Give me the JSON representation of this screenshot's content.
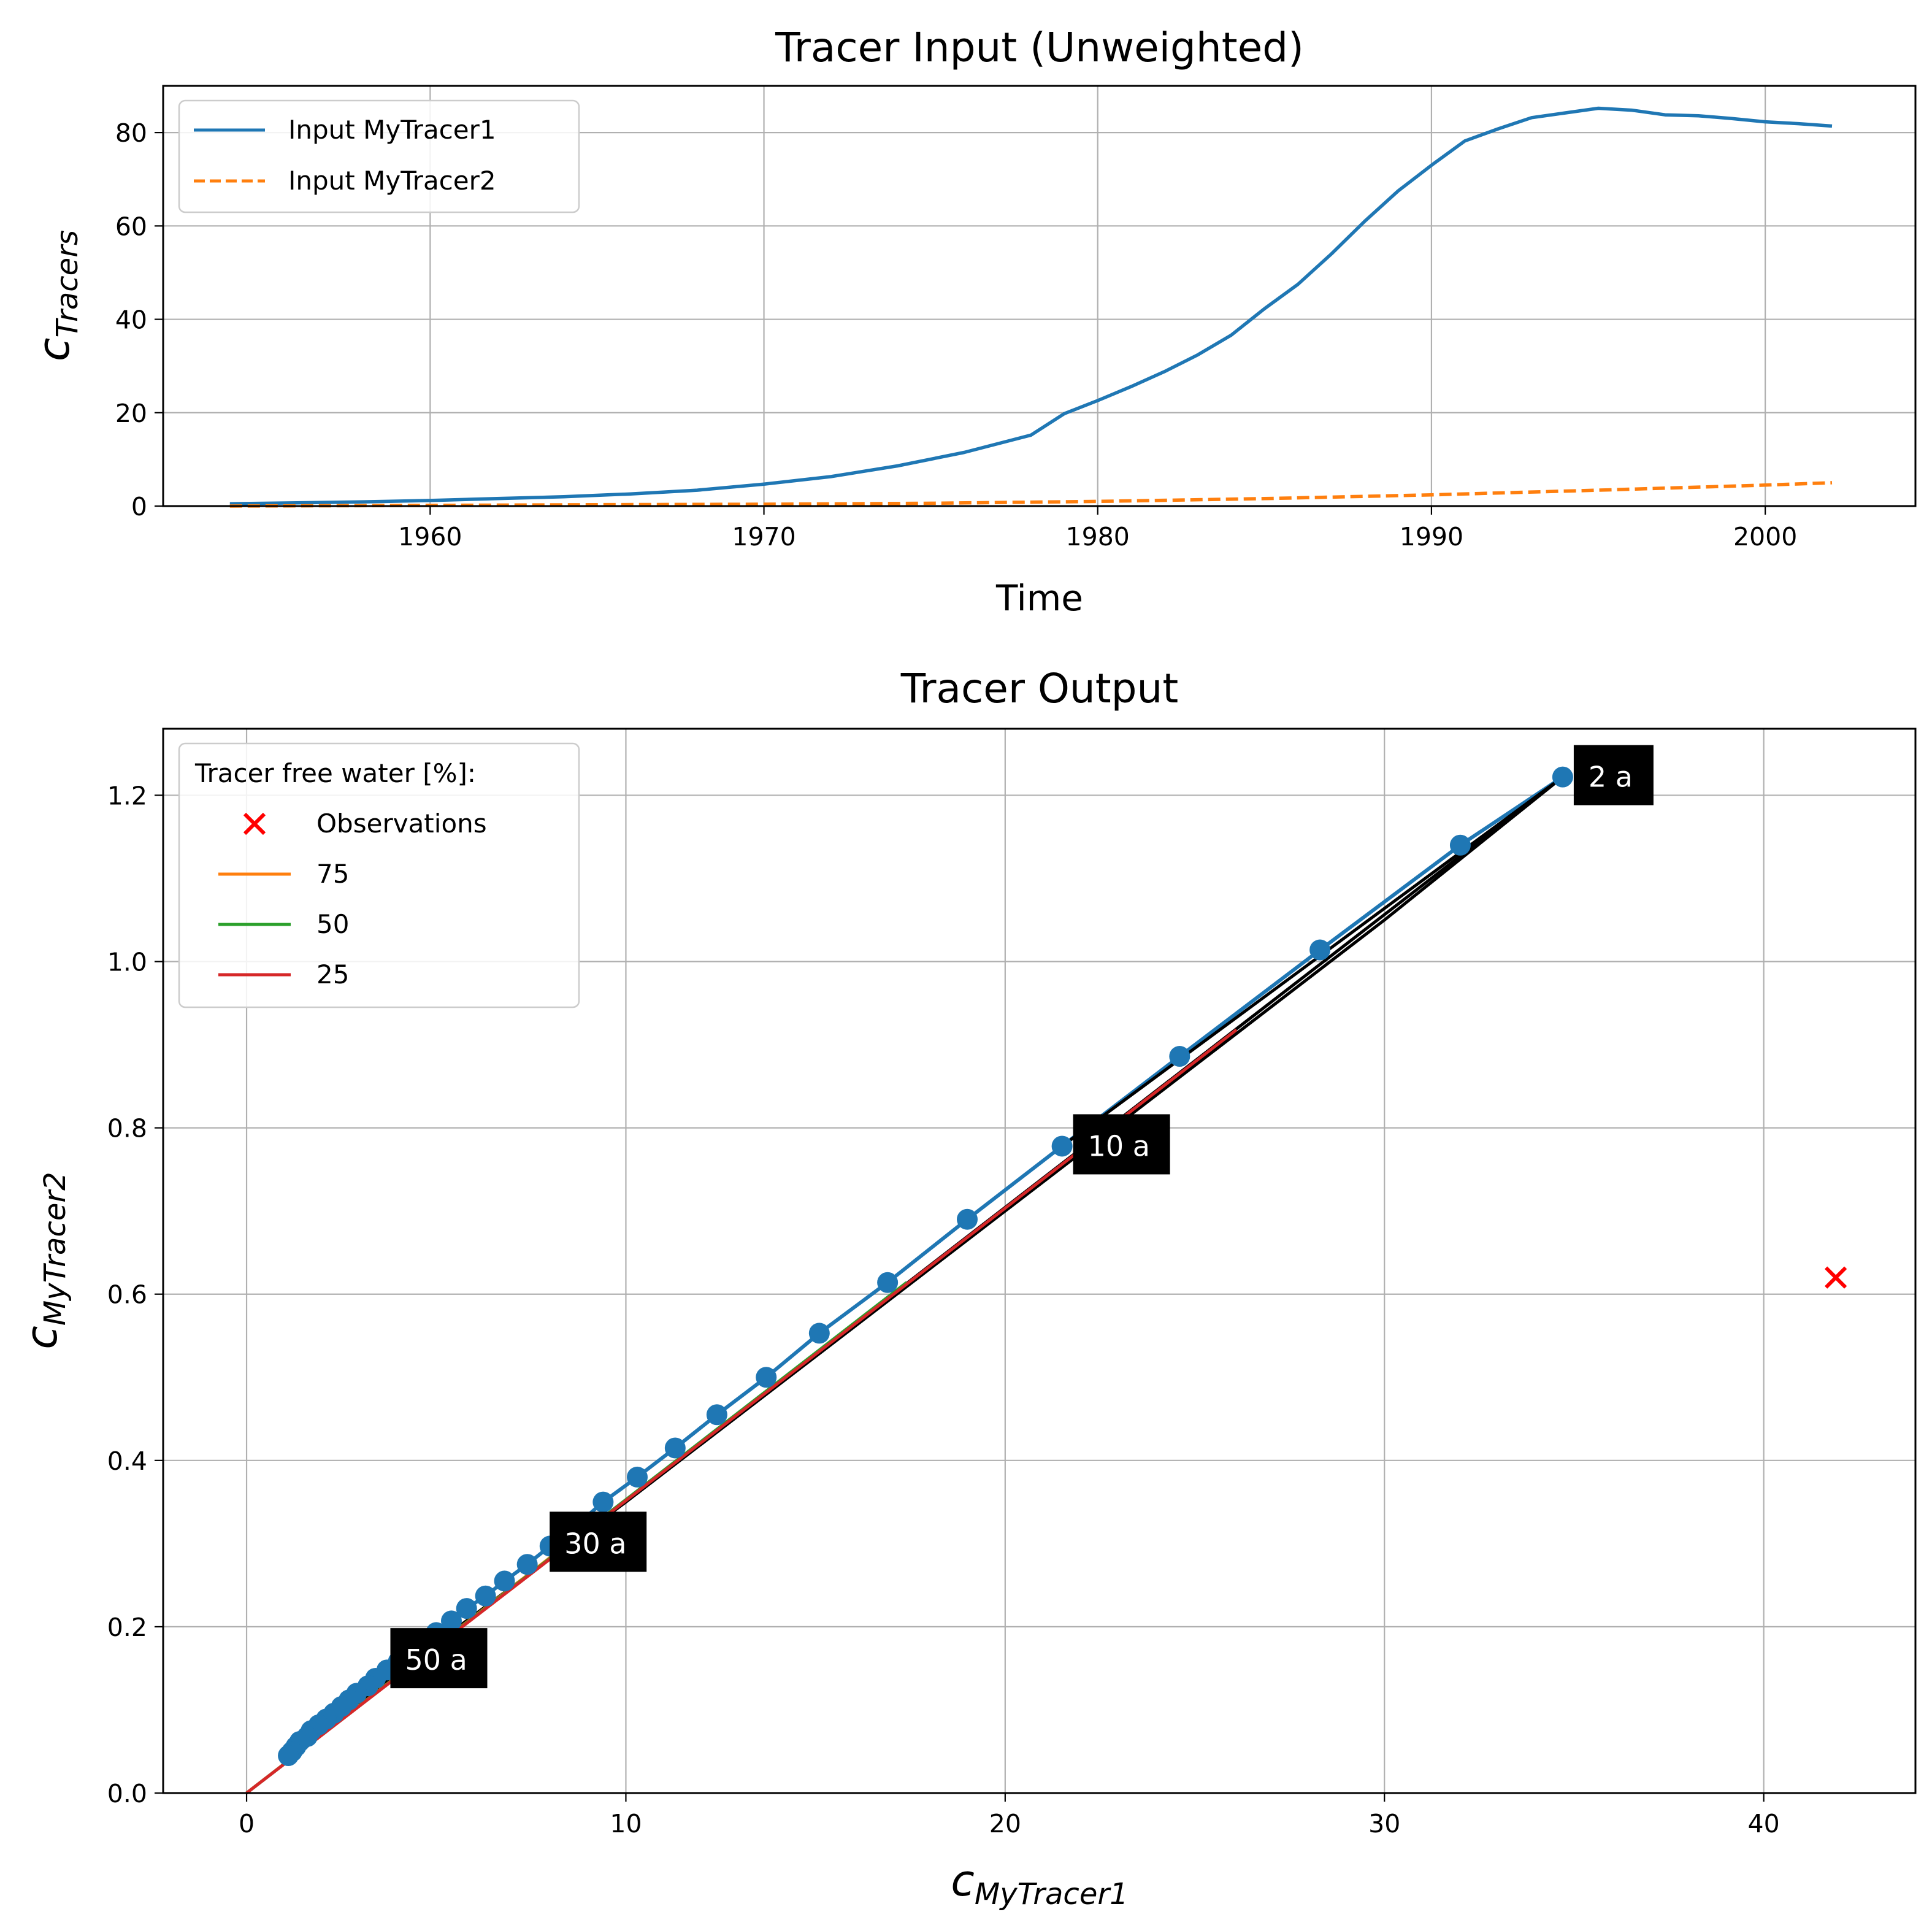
{
  "chart_data": [
    {
      "type": "line",
      "title": "Tracer Input (Unweighted)",
      "xlabel": "Time",
      "ylabel_base": "c",
      "ylabel_sub": "Tracers",
      "xlim": [
        1952,
        2004.5
      ],
      "ylim": [
        0,
        90
      ],
      "xticks": [
        1960,
        1970,
        1980,
        1990,
        2000
      ],
      "yticks": [
        0,
        20,
        40,
        60,
        80
      ],
      "grid": true,
      "legend_position": "upper-left",
      "series": [
        {
          "name": "Input MyTracer1",
          "color": "#1f77b4",
          "style": "solid",
          "points": [
            [
              1954,
              0.5
            ],
            [
              1956,
              0.7
            ],
            [
              1958,
              0.9
            ],
            [
              1960,
              1.2
            ],
            [
              1962,
              1.6
            ],
            [
              1964,
              2.0
            ],
            [
              1966,
              2.6
            ],
            [
              1968,
              3.4
            ],
            [
              1970,
              4.7
            ],
            [
              1972,
              6.3
            ],
            [
              1974,
              8.6
            ],
            [
              1976,
              11.5
            ],
            [
              1978,
              15.2
            ],
            [
              1979,
              19.8
            ],
            [
              1980,
              22.6
            ],
            [
              1981,
              25.6
            ],
            [
              1982,
              28.8
            ],
            [
              1983,
              32.4
            ],
            [
              1984,
              36.6
            ],
            [
              1985,
              42.3
            ],
            [
              1986,
              47.5
            ],
            [
              1987,
              54.0
            ],
            [
              1988,
              61.0
            ],
            [
              1989,
              67.5
            ],
            [
              1990,
              73.0
            ],
            [
              1991,
              78.2
            ],
            [
              1992,
              80.8
            ],
            [
              1993,
              83.2
            ],
            [
              1994,
              84.2
            ],
            [
              1995,
              85.2
            ],
            [
              1996,
              84.8
            ],
            [
              1997,
              83.8
            ],
            [
              1998,
              83.6
            ],
            [
              1999,
              83.0
            ],
            [
              2000,
              82.3
            ],
            [
              2001,
              81.9
            ],
            [
              2002,
              81.4
            ]
          ]
        },
        {
          "name": "Input MyTracer2",
          "color": "#ff7f0e",
          "style": "dashed",
          "points": [
            [
              1954,
              0.0
            ],
            [
              1960,
              0.15
            ],
            [
              1965,
              0.3
            ],
            [
              1970,
              0.4
            ],
            [
              1975,
              0.6
            ],
            [
              1980,
              1.0
            ],
            [
              1985,
              1.6
            ],
            [
              1990,
              2.4
            ],
            [
              1995,
              3.4
            ],
            [
              2000,
              4.5
            ],
            [
              2002,
              5.0
            ]
          ]
        }
      ]
    },
    {
      "type": "scatter",
      "title": "Tracer Output",
      "xlabel_base": "c",
      "xlabel_sub": "MyTracer1",
      "ylabel_base": "c",
      "ylabel_sub": "MyTracer2",
      "xlim": [
        -2.2,
        44
      ],
      "ylim": [
        0,
        1.28
      ],
      "xticks": [
        0,
        10,
        20,
        30,
        40
      ],
      "yticks": [
        "0.0",
        "0.2",
        "0.4",
        "0.6",
        "0.8",
        "1.0",
        "1.2"
      ],
      "grid": true,
      "legend_position": "upper-left",
      "legend_title": "Tracer free water [%]:",
      "model_curve": {
        "color": "#1f77b4",
        "points": [
          [
            34.7,
            1.222
          ],
          [
            32.0,
            1.14
          ],
          [
            28.3,
            1.014
          ],
          [
            24.6,
            0.886
          ],
          [
            21.5,
            0.778
          ],
          [
            19.0,
            0.69
          ],
          [
            16.9,
            0.614
          ],
          [
            15.1,
            0.553
          ],
          [
            13.7,
            0.5
          ],
          [
            12.4,
            0.455
          ],
          [
            11.3,
            0.415
          ],
          [
            10.3,
            0.38
          ],
          [
            9.4,
            0.35
          ],
          [
            8.7,
            0.322
          ],
          [
            8.0,
            0.297
          ],
          [
            7.4,
            0.275
          ],
          [
            6.8,
            0.255
          ],
          [
            6.3,
            0.237
          ],
          [
            5.8,
            0.222
          ],
          [
            5.4,
            0.207
          ],
          [
            5.0,
            0.193
          ],
          [
            4.6,
            0.181
          ],
          [
            4.3,
            0.169
          ],
          [
            4.0,
            0.158
          ],
          [
            3.7,
            0.148
          ],
          [
            3.4,
            0.138
          ],
          [
            3.2,
            0.129
          ],
          [
            2.9,
            0.12
          ],
          [
            2.7,
            0.112
          ],
          [
            2.5,
            0.104
          ],
          [
            2.3,
            0.096
          ],
          [
            2.1,
            0.089
          ],
          [
            1.9,
            0.082
          ],
          [
            1.7,
            0.075
          ],
          [
            1.6,
            0.068
          ],
          [
            1.4,
            0.062
          ],
          [
            1.3,
            0.056
          ],
          [
            1.2,
            0.05
          ],
          [
            1.1,
            0.045
          ]
        ]
      },
      "black_curve": {
        "color": "#000000",
        "points": [
          [
            1.1,
            0.045
          ],
          [
            5.0,
            0.18
          ],
          [
            10.0,
            0.35
          ],
          [
            20.0,
            0.7
          ],
          [
            30.0,
            1.05
          ],
          [
            34.7,
            1.222
          ]
        ]
      },
      "black_lines": [
        {
          "color": "#000000",
          "points": [
            [
              0,
              0
            ],
            [
              34.7,
              1.222
            ]
          ]
        },
        {
          "color": "#000000",
          "points": [
            [
              21.5,
              0.778
            ],
            [
              34.7,
              1.222
            ]
          ]
        }
      ],
      "fraction_lines": [
        {
          "name": "75",
          "color": "#ff7f0e",
          "points": [
            [
              0,
              0
            ],
            [
              8.7,
              0.308
            ]
          ]
        },
        {
          "name": "50",
          "color": "#2ca02c",
          "points": [
            [
              0,
              0
            ],
            [
              17.4,
              0.614
            ]
          ]
        },
        {
          "name": "25",
          "color": "#d62728",
          "points": [
            [
              0,
              0
            ],
            [
              26.1,
              0.918
            ]
          ]
        }
      ],
      "observations": {
        "name": "Observations",
        "color": "#ff0000",
        "points": [
          [
            41.9,
            0.62
          ]
        ]
      },
      "annotations": [
        {
          "text": "2 a",
          "x": 34.7,
          "y": 1.222
        },
        {
          "text": "10 a",
          "x": 21.5,
          "y": 0.778
        },
        {
          "text": "30 a",
          "x": 7.7,
          "y": 0.3
        },
        {
          "text": "50 a",
          "x": 3.5,
          "y": 0.16
        }
      ]
    }
  ]
}
